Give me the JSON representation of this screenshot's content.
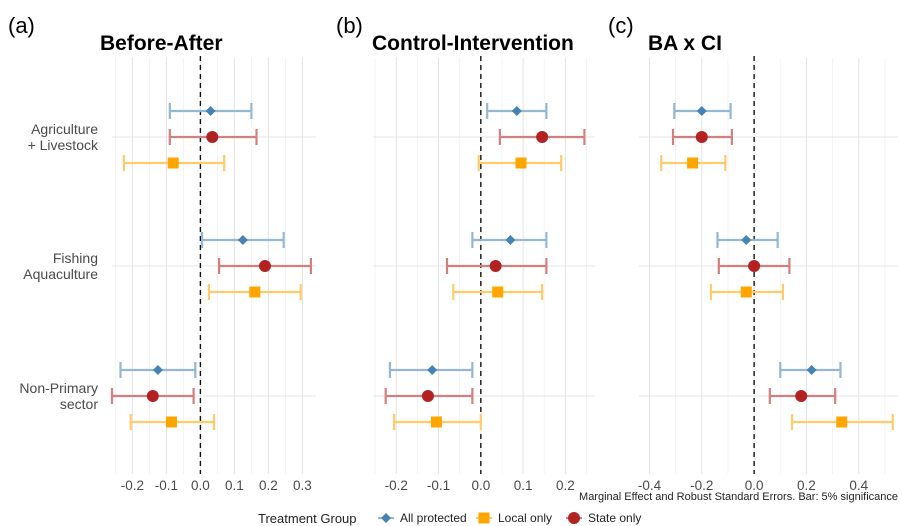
{
  "chart_data": {
    "type": "forest",
    "panels": [
      {
        "tag": "(a)",
        "title": "Before-After",
        "xlim": [
          -0.26,
          0.34
        ],
        "ticks": [
          -0.2,
          -0.1,
          0.0,
          0.1,
          0.2,
          0.3
        ],
        "tick_labels": [
          "-0.2",
          "-0.1",
          "0.0",
          "0.1",
          "0.2",
          "0.3"
        ],
        "show_tick_labels": true,
        "series": [
          {
            "group": "All protected",
            "points": [
              {
                "category": "Agriculture + Livestock",
                "estimate": 0.03,
                "lower": -0.09,
                "upper": 0.15
              },
              {
                "category": "Fishing Aquaculture",
                "estimate": 0.125,
                "lower": 0.005,
                "upper": 0.245
              },
              {
                "category": "Non-Primary sector",
                "estimate": -0.125,
                "lower": -0.235,
                "upper": -0.015
              }
            ]
          },
          {
            "group": "State only",
            "points": [
              {
                "category": "Agriculture + Livestock",
                "estimate": 0.035,
                "lower": -0.09,
                "upper": 0.165
              },
              {
                "category": "Fishing Aquaculture",
                "estimate": 0.19,
                "lower": 0.055,
                "upper": 0.325
              },
              {
                "category": "Non-Primary sector",
                "estimate": -0.14,
                "lower": -0.26,
                "upper": -0.02
              }
            ]
          },
          {
            "group": "Local only",
            "points": [
              {
                "category": "Agriculture + Livestock",
                "estimate": -0.08,
                "lower": -0.225,
                "upper": 0.07
              },
              {
                "category": "Fishing Aquaculture",
                "estimate": 0.16,
                "lower": 0.025,
                "upper": 0.295
              },
              {
                "category": "Non-Primary sector",
                "estimate": -0.085,
                "lower": -0.205,
                "upper": 0.04
              }
            ]
          }
        ]
      },
      {
        "tag": "(b)",
        "title": "Control-Intervention",
        "xlim": [
          -0.255,
          0.27
        ],
        "ticks": [
          -0.2,
          -0.1,
          0.0,
          0.1,
          0.2
        ],
        "tick_labels": [
          "-0.2",
          "-0.1",
          "0.0",
          "0.1",
          "0.2"
        ],
        "show_tick_labels": true,
        "series": [
          {
            "group": "All protected",
            "points": [
              {
                "category": "Agriculture + Livestock",
                "estimate": 0.085,
                "lower": 0.015,
                "upper": 0.155
              },
              {
                "category": "Fishing Aquaculture",
                "estimate": 0.07,
                "lower": -0.02,
                "upper": 0.155
              },
              {
                "category": "Non-Primary sector",
                "estimate": -0.115,
                "lower": -0.215,
                "upper": -0.02
              }
            ]
          },
          {
            "group": "State only",
            "points": [
              {
                "category": "Agriculture + Livestock",
                "estimate": 0.145,
                "lower": 0.045,
                "upper": 0.245
              },
              {
                "category": "Fishing Aquaculture",
                "estimate": 0.035,
                "lower": -0.08,
                "upper": 0.155
              },
              {
                "category": "Non-Primary sector",
                "estimate": -0.125,
                "lower": -0.225,
                "upper": -0.02
              }
            ]
          },
          {
            "group": "Local only",
            "points": [
              {
                "category": "Agriculture + Livestock",
                "estimate": 0.095,
                "lower": -0.005,
                "upper": 0.19
              },
              {
                "category": "Fishing Aquaculture",
                "estimate": 0.04,
                "lower": -0.065,
                "upper": 0.145
              },
              {
                "category": "Non-Primary sector",
                "estimate": -0.105,
                "lower": -0.205,
                "upper": 0.0
              }
            ]
          }
        ]
      },
      {
        "tag": "(c)",
        "title": "BA x CI",
        "xlim": [
          -0.44,
          0.55
        ],
        "ticks": [
          -0.4,
          -0.2,
          0.0,
          0.2,
          0.4
        ],
        "tick_labels": [
          "-0.4",
          "-0.2",
          "0.0",
          "0.2",
          "0.4"
        ],
        "show_tick_labels": true,
        "series": [
          {
            "group": "All protected",
            "points": [
              {
                "category": "Agriculture + Livestock",
                "estimate": -0.2,
                "lower": -0.305,
                "upper": -0.09
              },
              {
                "category": "Fishing Aquaculture",
                "estimate": -0.03,
                "lower": -0.14,
                "upper": 0.09
              },
              {
                "category": "Non-Primary sector",
                "estimate": 0.22,
                "lower": 0.1,
                "upper": 0.33
              }
            ]
          },
          {
            "group": "State only",
            "points": [
              {
                "category": "Agriculture + Livestock",
                "estimate": -0.2,
                "lower": -0.31,
                "upper": -0.085
              },
              {
                "category": "Fishing Aquaculture",
                "estimate": 0.0,
                "lower": -0.135,
                "upper": 0.135
              },
              {
                "category": "Non-Primary sector",
                "estimate": 0.18,
                "lower": 0.06,
                "upper": 0.31
              }
            ]
          },
          {
            "group": "Local only",
            "points": [
              {
                "category": "Agriculture + Livestock",
                "estimate": -0.235,
                "lower": -0.355,
                "upper": -0.11
              },
              {
                "category": "Fishing Aquaculture",
                "estimate": -0.03,
                "lower": -0.165,
                "upper": 0.11
              },
              {
                "category": "Non-Primary sector",
                "estimate": 0.335,
                "lower": 0.145,
                "upper": 0.53
              }
            ]
          }
        ]
      }
    ],
    "categories": [
      {
        "key": "Agriculture + Livestock",
        "lines": [
          "Agriculture",
          "+ Livestock"
        ]
      },
      {
        "key": "Fishing Aquaculture",
        "lines": [
          "Fishing",
          "Aquaculture"
        ]
      },
      {
        "key": "Non-Primary sector",
        "lines": [
          "Non-Primary",
          "sector"
        ]
      }
    ],
    "groups": [
      {
        "name": "All protected",
        "color": "#4682b4",
        "shape": "diamond"
      },
      {
        "name": "Local only",
        "color": "#ffa500",
        "shape": "square"
      },
      {
        "name": "State only",
        "color": "#b22222",
        "shape": "circle"
      }
    ],
    "caption": "Marginal Effect and Robust Standard Errors. Bar: 5% significance",
    "legend_title": "Treatment Group",
    "legend_position": "bottom",
    "reference_line": 0,
    "grid": true
  }
}
